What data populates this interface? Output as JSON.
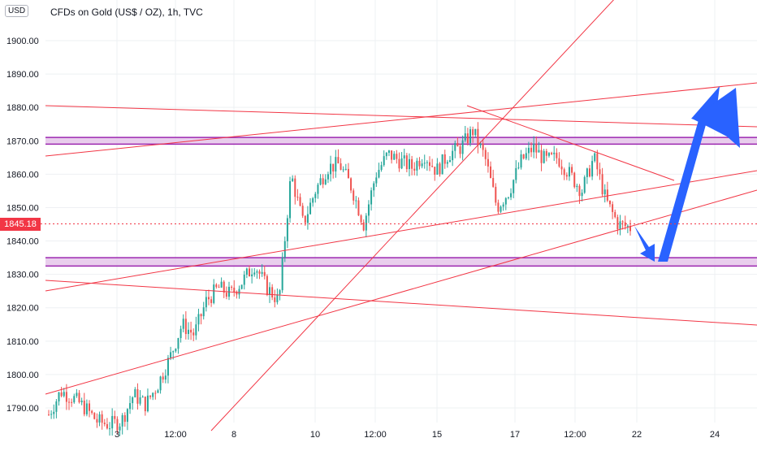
{
  "header": {
    "title": "CFDs on Gold (US$ / OZ), 1h, TVC",
    "currency": "USD"
  },
  "price_tag": {
    "value": "1845.18",
    "color": "#f23645"
  },
  "colors": {
    "line": "#f23645",
    "zone_fill": "#e1bee7",
    "zone_stroke": "#9c27b0",
    "arrow": "#2962ff",
    "grid": "#eef0f3",
    "bull": "#26a69a",
    "bear": "#ef5350"
  },
  "chart_data": {
    "type": "candlestick",
    "title": "CFDs on Gold (US$ / OZ), 1h, TVC",
    "xlabel": "",
    "ylabel": "",
    "ylim": [
      1785,
      1915
    ],
    "y_ticks": [
      "1900.00",
      "1890.00",
      "1880.00",
      "1870.00",
      "1860.00",
      "1850.00",
      "1840.00",
      "1830.00",
      "1820.00",
      "1810.00",
      "1800.00",
      "1790.00"
    ],
    "x_ticks": [
      "3",
      "12:00",
      "8",
      "10",
      "12:00",
      "15",
      "17",
      "12:00",
      "22",
      "24"
    ],
    "current_price": 1845.18,
    "zones": [
      {
        "low": 1869,
        "high": 1871
      },
      {
        "low": 1832.5,
        "high": 1835
      }
    ],
    "price_path": [
      1788,
      1795,
      1793,
      1790,
      1786,
      1785,
      1786,
      1794,
      1791,
      1797,
      1805,
      1815,
      1812,
      1822,
      1826,
      1824,
      1828,
      1833,
      1826,
      1822,
      1860,
      1845,
      1855,
      1862,
      1863,
      1856,
      1845,
      1860,
      1866,
      1864,
      1862,
      1866,
      1861,
      1866,
      1868,
      1873,
      1865,
      1850,
      1855,
      1864,
      1868,
      1864,
      1865,
      1860,
      1855,
      1865,
      1852,
      1845,
      1844
    ]
  }
}
